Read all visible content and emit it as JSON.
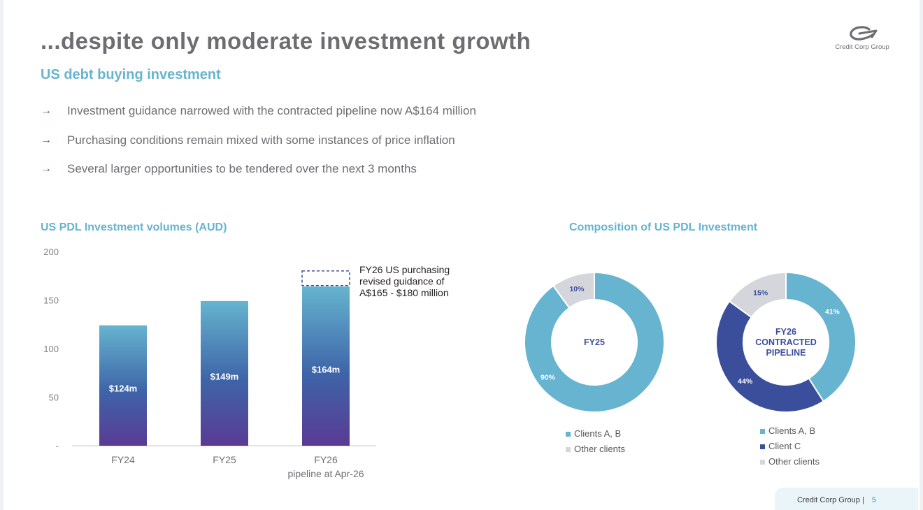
{
  "slide": {
    "title": "...despite only moderate investment growth",
    "subtitle": "US debt buying investment",
    "logo_text": "Credit Corp Group",
    "bullets": [
      "Investment guidance narrowed with the contracted pipeline now A$164 million",
      "Purchasing conditions remain mixed with some instances of price inflation",
      "Several larger opportunities to be tendered over the next 3 months"
    ],
    "bullet_arrow": "→",
    "footer": {
      "company": "Credit Corp Group",
      "separator": "|",
      "page": "5"
    }
  },
  "colors": {
    "accent": "#66b4cf",
    "navy": "#3a4e9c",
    "purple": "#5a3a95",
    "grey_segment": "#d4d6dc",
    "title_grey": "#6d6e71"
  },
  "chart_data": [
    {
      "type": "bar",
      "title": "US PDL Investment volumes (AUD)",
      "categories": [
        "FY24",
        "FY25",
        "FY26"
      ],
      "category_sublabels": [
        "",
        "",
        "pipeline at Apr-26"
      ],
      "values": [
        124,
        149,
        164
      ],
      "data_labels": [
        "$124m",
        "$149m",
        "$164m"
      ],
      "ylim": [
        0,
        200
      ],
      "yticks": [
        0,
        50,
        100,
        150,
        200
      ],
      "ytick_labels": [
        "-",
        "50",
        "100",
        "150",
        "200"
      ],
      "guidance": {
        "category": "FY26",
        "range": [
          165,
          180
        ],
        "annotation": [
          "FY26 US purchasing",
          "revised guidance of",
          "A$165 - $180 million"
        ]
      },
      "grid": false
    },
    {
      "type": "pie",
      "title": "Composition of US PDL Investment",
      "charts": [
        {
          "center_label": [
            "FY25"
          ],
          "slices": [
            {
              "name": "Clients A, B",
              "value": 90,
              "label": "90%",
              "color": "#66b4cf"
            },
            {
              "name": "Other clients",
              "value": 10,
              "label": "10%",
              "color": "#d4d6dc"
            }
          ]
        },
        {
          "center_label": [
            "FY26",
            "CONTRACTED",
            "PIPELINE"
          ],
          "slices": [
            {
              "name": "Clients A, B",
              "value": 41,
              "label": "41%",
              "color": "#66b4cf"
            },
            {
              "name": "Client C",
              "value": 44,
              "label": "44%",
              "color": "#3a4e9c"
            },
            {
              "name": "Other clients",
              "value": 15,
              "label": "15%",
              "color": "#d4d6dc"
            }
          ]
        }
      ]
    }
  ]
}
